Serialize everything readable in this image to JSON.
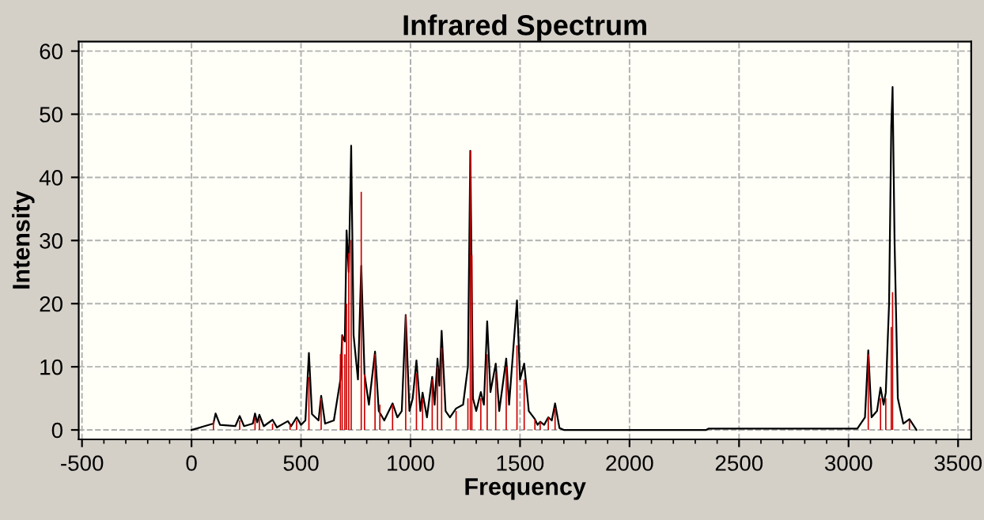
{
  "chart_data": {
    "type": "line",
    "title": "Infrared Spectrum",
    "xlabel": "Frequency",
    "ylabel": "Intensity",
    "xlim": [
      -515,
      3560
    ],
    "xticks": [
      -500,
      0,
      500,
      1000,
      1500,
      2000,
      2500,
      3000,
      3500
    ],
    "ylim": [
      -1.5,
      61.5
    ],
    "yticks": [
      0,
      10,
      20,
      30,
      40,
      50,
      60
    ],
    "grid": true,
    "series": [
      {
        "type": "bar",
        "color": "#cc0000",
        "x": [
          100,
          220,
          290,
          310,
          370,
          450,
          480,
          536,
          592,
          680,
          688,
          700,
          708,
          718,
          729,
          775,
          790,
          838,
          860,
          918,
          978,
          1027,
          1055,
          1099,
          1123,
          1142,
          1208,
          1262,
          1273,
          1280,
          1321,
          1350,
          1389,
          1437,
          1486,
          1519,
          1568,
          1592,
          1629,
          1660,
          3090,
          3146,
          3170,
          3195,
          3201,
          3278
        ],
        "values": [
          1.5,
          1.5,
          2,
          1.8,
          1,
          1,
          1.5,
          8.4,
          5,
          12,
          15,
          12,
          20,
          28,
          30,
          37.7,
          8.8,
          12,
          4,
          4,
          18.2,
          9,
          5,
          8,
          10,
          13,
          3,
          5,
          44.2,
          27.7,
          5,
          12,
          9,
          10,
          13.4,
          8,
          1.7,
          1.3,
          2,
          3.5,
          12,
          5,
          5,
          16.3,
          21.8,
          1.5
        ]
      },
      {
        "color": "#000000",
        "x": [
          0,
          50,
          100,
          110,
          130,
          200,
          220,
          240,
          280,
          290,
          300,
          310,
          330,
          370,
          390,
          440,
          455,
          480,
          500,
          520,
          536,
          550,
          580,
          592,
          610,
          650,
          680,
          688,
          700,
          708,
          718,
          729,
          740,
          760,
          775,
          790,
          810,
          838,
          855,
          880,
          918,
          940,
          960,
          978,
          995,
          1010,
          1027,
          1045,
          1055,
          1075,
          1099,
          1110,
          1123,
          1132,
          1142,
          1160,
          1180,
          1208,
          1240,
          1262,
          1273,
          1285,
          1300,
          1321,
          1335,
          1350,
          1365,
          1389,
          1405,
          1437,
          1450,
          1486,
          1500,
          1519,
          1540,
          1568,
          1580,
          1592,
          1610,
          1629,
          1645,
          1660,
          1680,
          1700,
          2350,
          2360,
          3040,
          3075,
          3090,
          3105,
          3130,
          3146,
          3160,
          3170,
          3185,
          3195,
          3201,
          3210,
          3225,
          3250,
          3278,
          3310
        ],
        "values": [
          0,
          0.5,
          1,
          2.6,
          0.8,
          0.6,
          2.2,
          0.6,
          1,
          2.6,
          1.2,
          2.4,
          0.6,
          1.6,
          0.4,
          1.4,
          0.6,
          2,
          0.8,
          1.5,
          12.2,
          2.5,
          1.5,
          5.4,
          1,
          1.5,
          8,
          15,
          14,
          31.6,
          25,
          45,
          15,
          8,
          26,
          8.8,
          4,
          12.4,
          3,
          1.5,
          4.2,
          2,
          3,
          18.2,
          3,
          5,
          11,
          3,
          5.9,
          2,
          8.4,
          4,
          11.3,
          7,
          15.7,
          3,
          2,
          3.4,
          4,
          10,
          44.2,
          5,
          3,
          6,
          4,
          17.2,
          6,
          10.5,
          3,
          11.3,
          4,
          20.5,
          8,
          10.5,
          3,
          1.7,
          0.8,
          1.3,
          0.8,
          2,
          1.5,
          4.2,
          0.3,
          0,
          0,
          0.2,
          0.2,
          2,
          12.6,
          2,
          3,
          6.7,
          4,
          5.9,
          20,
          48,
          54.3,
          30,
          5,
          1,
          1.7,
          0
        ]
      }
    ]
  }
}
